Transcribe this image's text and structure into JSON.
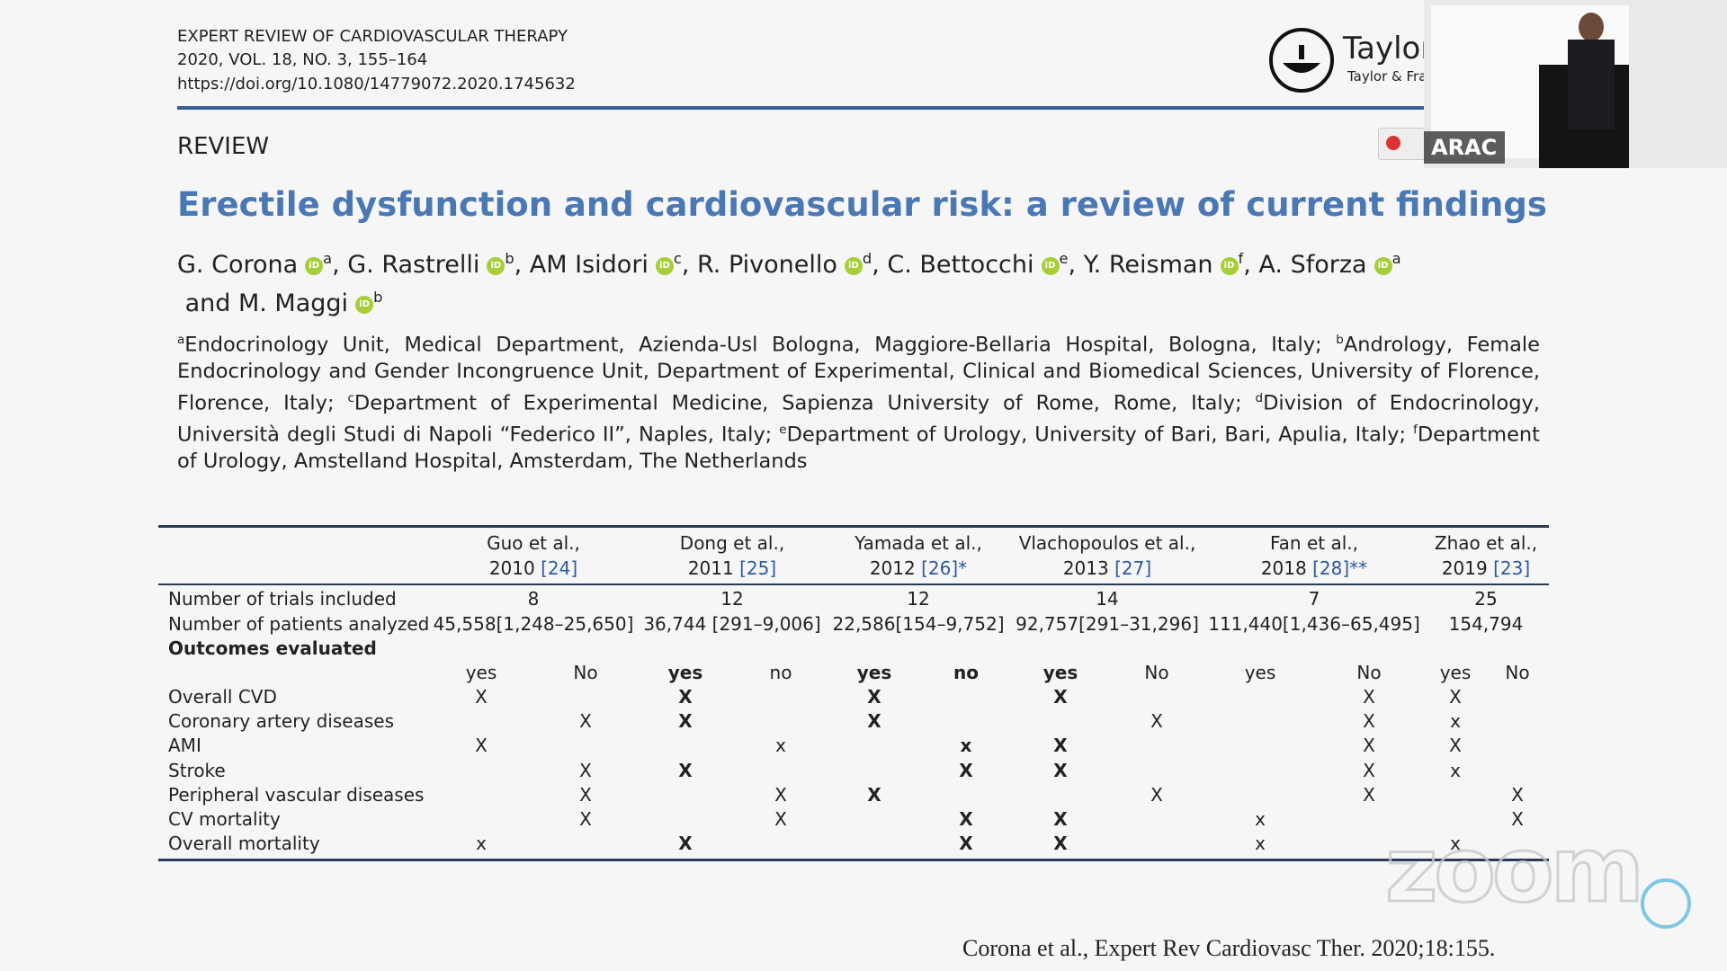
{
  "journal": {
    "name": "EXPERT REVIEW OF CARDIOVASCULAR THERAPY",
    "issue": "2020, VOL. 18, NO. 3, 155–164",
    "doi": "https://doi.org/10.1080/14779072.2020.1745632"
  },
  "publisher": {
    "logo_text": "Taylor",
    "logo_sub": "Taylor & Fra"
  },
  "video": {
    "label": "ARAC"
  },
  "section": "REVIEW",
  "title": "Erectile dysfunction and cardiovascular risk: a review of current findings",
  "authors": [
    {
      "name": "G. Corona",
      "sup": "a",
      "sep": ", "
    },
    {
      "name": "G. Rastrelli",
      "sup": "b",
      "sep": ", "
    },
    {
      "name": "AM Isidori",
      "sup": "c",
      "sep": ", "
    },
    {
      "name": "R. Pivonello",
      "sup": "d",
      "sep": ", "
    },
    {
      "name": "C. Bettocchi",
      "sup": "e",
      "sep": ", "
    },
    {
      "name": "Y. Reisman",
      "sup": "f",
      "sep": ", "
    },
    {
      "name": "A. Sforza",
      "sup": "a",
      "sep": " and "
    },
    {
      "name": "M. Maggi",
      "sup": "b",
      "sep": null
    }
  ],
  "affiliations": [
    {
      "sup": "a",
      "text": "Endocrinology Unit, Medical Department, Azienda-Usl Bologna, Maggiore-Bellaria Hospital, Bologna, Italy; "
    },
    {
      "sup": "b",
      "text": "Andrology, Female Endocrinology and Gender Incongruence Unit, Department of Experimental, Clinical and Biomedical Sciences, University of Florence, Florence, Italy; "
    },
    {
      "sup": "c",
      "text": "Department of Experimental Medicine, Sapienza University of Rome, Rome, Italy; "
    },
    {
      "sup": "d",
      "text": "Division of Endocrinology, Università degli Studi di Napoli “Federico II”, Naples, Italy; "
    },
    {
      "sup": "e",
      "text": "Department of Urology, University of Bari, Bari, Apulia, Italy; "
    },
    {
      "sup": "f",
      "text": "Department of Urology, Amstelland Hospital, Amsterdam, The Netherlands"
    }
  ],
  "table": {
    "studies": [
      {
        "name": "Guo et al.,",
        "year": "2010",
        "ref": "[24]"
      },
      {
        "name": "Dong et al.,",
        "year": "2011",
        "ref": "[25]"
      },
      {
        "name": "Yamada et al.,",
        "year": "2012",
        "ref": "[26]*"
      },
      {
        "name": "Vlachopoulos et al.,",
        "year": "2013",
        "ref": "[27]"
      },
      {
        "name": "Fan et al.,",
        "year": "2018",
        "ref": "[28]**"
      },
      {
        "name": "Zhao et al.,",
        "year": "2019",
        "ref": "[23]"
      }
    ],
    "summary_rows": [
      {
        "label": "Number of trials included",
        "values": [
          "8",
          "12",
          "12",
          "14",
          "7",
          "25"
        ]
      },
      {
        "label": "Number of patients analyzed",
        "values": [
          "45,558[1,248–25,650]",
          "36,744 [291–9,006]",
          "22,586[154–9,752]",
          "92,757[291–31,296]",
          "111,440[1,436–65,495]",
          "154,794"
        ]
      }
    ],
    "outcomes_heading": "Outcomes evaluated",
    "subheaders": [
      "yes",
      "No",
      "yes",
      "no",
      "yes",
      "no",
      "yes",
      "No",
      "yes",
      "No",
      "yes",
      "No"
    ],
    "outcome_rows": [
      {
        "label": "Overall CVD",
        "cells": [
          "X",
          null,
          "X",
          null,
          "X",
          null,
          "X",
          null,
          null,
          "X",
          "X",
          null
        ]
      },
      {
        "label": "Coronary artery diseases",
        "cells": [
          null,
          "X",
          "X",
          null,
          "X",
          null,
          null,
          "X",
          null,
          "X",
          "x",
          null
        ]
      },
      {
        "label": "AMI",
        "cells": [
          "X",
          null,
          null,
          "x",
          null,
          "x",
          "X",
          null,
          null,
          "X",
          "X",
          null
        ]
      },
      {
        "label": "Stroke",
        "cells": [
          null,
          "X",
          "X",
          null,
          null,
          "X",
          "X",
          null,
          null,
          "X",
          "x",
          null
        ]
      },
      {
        "label": "Peripheral vascular diseases",
        "cells": [
          null,
          "X",
          null,
          "X",
          "X",
          null,
          null,
          "X",
          null,
          "X",
          null,
          "X"
        ]
      },
      {
        "label": "CV mortality",
        "cells": [
          null,
          "X",
          null,
          "X",
          null,
          "X",
          "X",
          null,
          "x",
          null,
          null,
          "X"
        ]
      },
      {
        "label": "Overall mortality",
        "cells": [
          "x",
          null,
          "X",
          null,
          null,
          "X",
          "X",
          null,
          "x",
          null,
          "x",
          null
        ]
      }
    ]
  },
  "watermark": "zoom",
  "citation": "Corona et al., Expert Rev Cardiovasc Ther. 2020;18:155."
}
